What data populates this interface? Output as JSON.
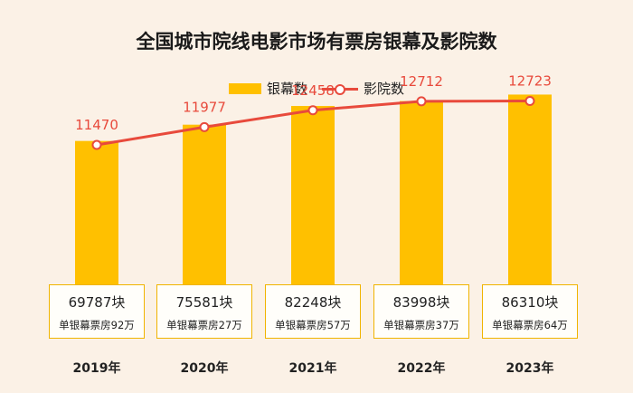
{
  "colors": {
    "bar": "#ffc000",
    "line": "#e84a3c",
    "box_border": "#f0b400"
  },
  "chart_data": {
    "type": "bar",
    "title": "全国城市院线电影市场有票房银幕及影院数",
    "categories": [
      "2019年",
      "2020年",
      "2021年",
      "2022年",
      "2023年"
    ],
    "ylim_screens": [
      0,
      100000
    ],
    "ylim_cinemas": [
      6000,
      14000
    ],
    "legend": {
      "placement": "top"
    },
    "series": [
      {
        "name": "银幕数",
        "type": "bar",
        "values": [
          69787,
          75581,
          82248,
          83998,
          86310
        ],
        "labels": [
          "69787块",
          "75581块",
          "82248块",
          "83998块",
          "86310块"
        ]
      },
      {
        "name": "影院数",
        "type": "line",
        "values": [
          11470,
          11977,
          12458,
          12712,
          12723
        ],
        "labels": [
          "11470",
          "11977",
          "12458",
          "12712",
          "12723"
        ]
      }
    ],
    "notes": [
      "单银幕票房92万",
      "单银幕票房27万",
      "单银幕票房57万",
      "单银幕票房37万",
      "单银幕票房64万"
    ]
  }
}
